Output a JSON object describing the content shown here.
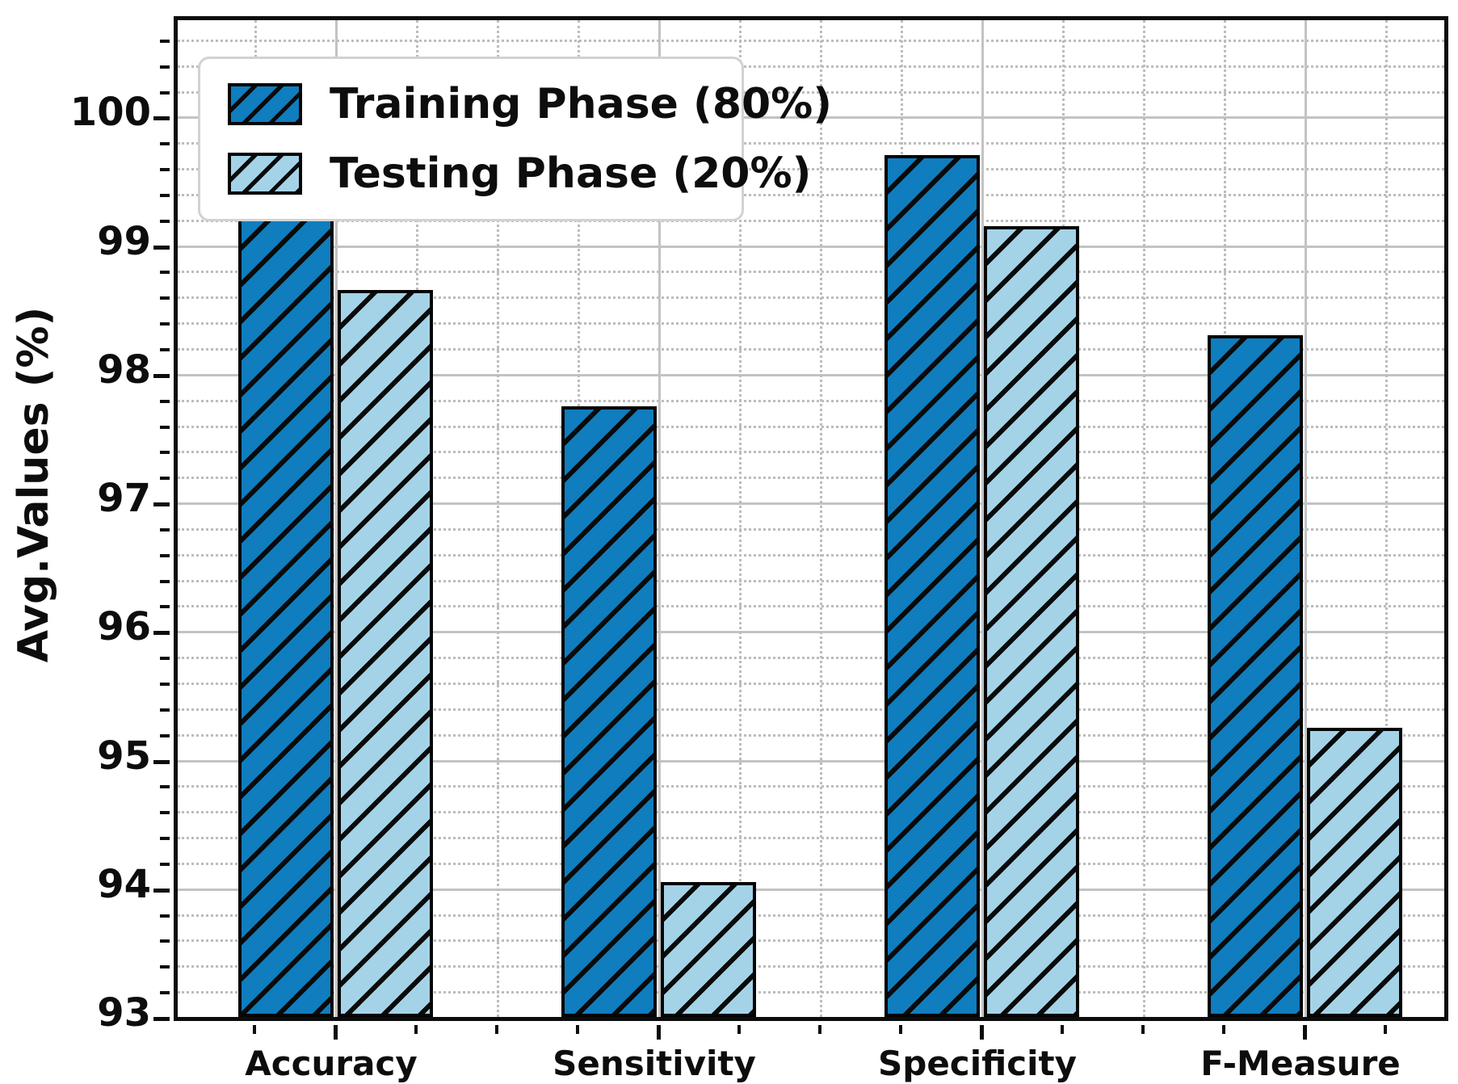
{
  "figure": {
    "background": "#ffffff"
  },
  "chart_data": {
    "type": "bar",
    "categories": [
      "Accuracy",
      "Sensitivity",
      "Specificity",
      "F-Measure"
    ],
    "series": [
      {
        "name": "Training Phase (80%)",
        "values": [
          99.55,
          97.75,
          99.7,
          98.3
        ],
        "fill": "#0f7dbe",
        "hatch": "/",
        "edge": "#050505"
      },
      {
        "name": "Testing Phase (20%)",
        "values": [
          98.65,
          94.05,
          99.15,
          95.25
        ],
        "fill": "#a4d3e8",
        "hatch": "/",
        "edge": "#050505"
      }
    ],
    "title": "",
    "xlabel": "",
    "ylabel": "Avg.Values (%)",
    "ylim": [
      93,
      100.75
    ],
    "yticks": [
      93,
      94,
      95,
      96,
      97,
      98,
      99,
      100
    ],
    "y_minor_step": 0.2,
    "grid": {
      "major": true,
      "minor": true,
      "major_color": "#c3c3c3",
      "minor_color": "#bcbcbc"
    },
    "legend_position": "upper-left"
  },
  "legend": {
    "items": [
      {
        "label": "Training Phase (80%)"
      },
      {
        "label": "Testing Phase (20%)"
      }
    ]
  }
}
